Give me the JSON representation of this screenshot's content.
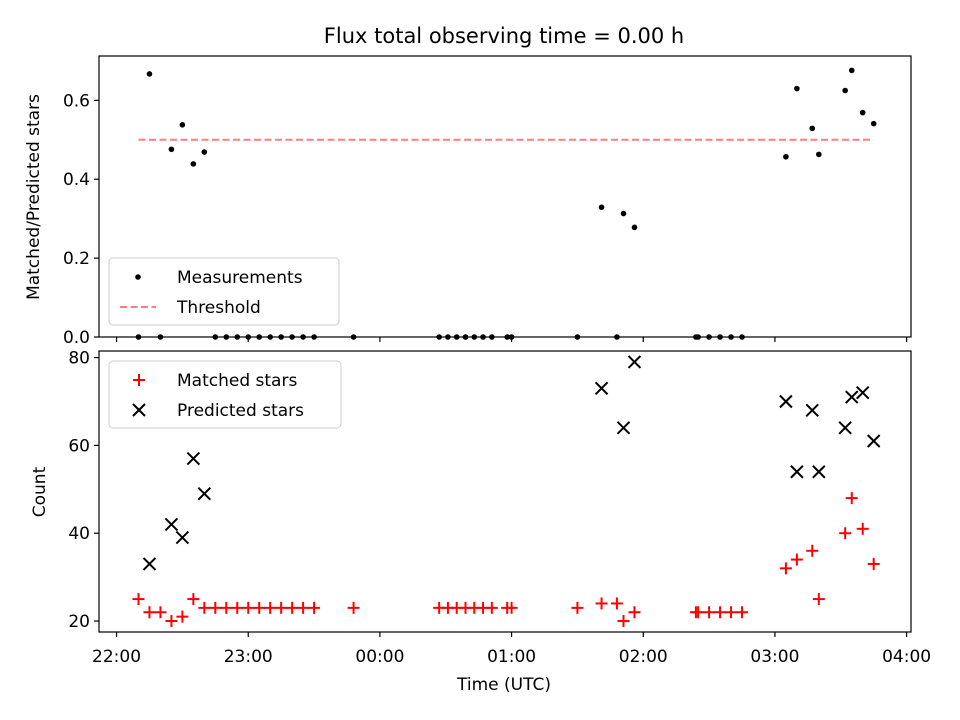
{
  "chart_data": [
    {
      "type": "scatter",
      "title": "Flux total observing time = 0.00 h",
      "xlabel": "",
      "ylabel": "Matched/Predicted stars",
      "x_range": [
        "21:52",
        "04:02"
      ],
      "ylim": [
        0,
        0.7125
      ],
      "yticks": [
        0.0,
        0.2,
        0.4,
        0.6
      ],
      "ytick_labels": [
        "0.0",
        "0.2",
        "0.4",
        "0.6"
      ],
      "legend_position": "lower-left",
      "threshold": {
        "name": "Threshold",
        "value": 0.5,
        "x_start": "22:10",
        "x_end": "03:45",
        "color": "#ff7f7f"
      },
      "series": [
        {
          "name": "Measurements",
          "color": "#000000",
          "marker": "dot",
          "points": [
            {
              "x": "22:10",
              "y": 0.0
            },
            {
              "x": "22:15",
              "y": 0.667
            },
            {
              "x": "22:20",
              "y": 0.0
            },
            {
              "x": "22:25",
              "y": 0.476
            },
            {
              "x": "22:30",
              "y": 0.538
            },
            {
              "x": "22:35",
              "y": 0.439
            },
            {
              "x": "22:40",
              "y": 0.469
            },
            {
              "x": "22:45",
              "y": 0.0
            },
            {
              "x": "22:50",
              "y": 0.0
            },
            {
              "x": "22:55",
              "y": 0.0
            },
            {
              "x": "23:00",
              "y": 0.0
            },
            {
              "x": "23:05",
              "y": 0.0
            },
            {
              "x": "23:10",
              "y": 0.0
            },
            {
              "x": "23:15",
              "y": 0.0
            },
            {
              "x": "23:20",
              "y": 0.0
            },
            {
              "x": "23:25",
              "y": 0.0
            },
            {
              "x": "23:30",
              "y": 0.0
            },
            {
              "x": "23:48",
              "y": 0.0
            },
            {
              "x": "00:27",
              "y": 0.0
            },
            {
              "x": "00:31",
              "y": 0.0
            },
            {
              "x": "00:35",
              "y": 0.0
            },
            {
              "x": "00:39",
              "y": 0.0
            },
            {
              "x": "00:43",
              "y": 0.0
            },
            {
              "x": "00:47",
              "y": 0.0
            },
            {
              "x": "00:51",
              "y": 0.0
            },
            {
              "x": "00:58",
              "y": 0.0
            },
            {
              "x": "01:00",
              "y": 0.0
            },
            {
              "x": "01:30",
              "y": 0.0
            },
            {
              "x": "01:41",
              "y": 0.329
            },
            {
              "x": "01:48",
              "y": 0.0
            },
            {
              "x": "01:51",
              "y": 0.313
            },
            {
              "x": "01:56",
              "y": 0.278
            },
            {
              "x": "02:24",
              "y": 0.0
            },
            {
              "x": "02:25",
              "y": 0.0
            },
            {
              "x": "02:30",
              "y": 0.0
            },
            {
              "x": "02:35",
              "y": 0.0
            },
            {
              "x": "02:40",
              "y": 0.0
            },
            {
              "x": "02:45",
              "y": 0.0
            },
            {
              "x": "03:05",
              "y": 0.457
            },
            {
              "x": "03:10",
              "y": 0.63
            },
            {
              "x": "03:17",
              "y": 0.529
            },
            {
              "x": "03:20",
              "y": 0.463
            },
            {
              "x": "03:32",
              "y": 0.625
            },
            {
              "x": "03:35",
              "y": 0.676
            },
            {
              "x": "03:40",
              "y": 0.569
            },
            {
              "x": "03:45",
              "y": 0.541
            }
          ]
        }
      ]
    },
    {
      "type": "scatter",
      "title": "",
      "xlabel": "Time (UTC)",
      "ylabel": "Count",
      "x_range": [
        "21:52",
        "04:02"
      ],
      "xticks": [
        "22:00",
        "23:00",
        "00:00",
        "01:00",
        "02:00",
        "03:00",
        "04:00"
      ],
      "xtick_labels": [
        "22:00",
        "23:00",
        "00:00",
        "01:00",
        "02:00",
        "03:00",
        "04:00"
      ],
      "ylim": [
        17.5,
        81.5
      ],
      "yticks": [
        20,
        40,
        60,
        80
      ],
      "ytick_labels": [
        "20",
        "40",
        "60",
        "80"
      ],
      "legend_position": "upper-left",
      "series": [
        {
          "name": "Matched stars",
          "color": "#ff0000",
          "marker": "plus",
          "points": [
            {
              "x": "22:10",
              "y": 25
            },
            {
              "x": "22:15",
              "y": 22
            },
            {
              "x": "22:20",
              "y": 22
            },
            {
              "x": "22:25",
              "y": 20
            },
            {
              "x": "22:30",
              "y": 21
            },
            {
              "x": "22:35",
              "y": 25
            },
            {
              "x": "22:40",
              "y": 23
            },
            {
              "x": "22:45",
              "y": 23
            },
            {
              "x": "22:50",
              "y": 23
            },
            {
              "x": "22:55",
              "y": 23
            },
            {
              "x": "23:00",
              "y": 23
            },
            {
              "x": "23:05",
              "y": 23
            },
            {
              "x": "23:10",
              "y": 23
            },
            {
              "x": "23:15",
              "y": 23
            },
            {
              "x": "23:20",
              "y": 23
            },
            {
              "x": "23:25",
              "y": 23
            },
            {
              "x": "23:30",
              "y": 23
            },
            {
              "x": "23:48",
              "y": 23
            },
            {
              "x": "00:27",
              "y": 23
            },
            {
              "x": "00:31",
              "y": 23
            },
            {
              "x": "00:35",
              "y": 23
            },
            {
              "x": "00:39",
              "y": 23
            },
            {
              "x": "00:43",
              "y": 23
            },
            {
              "x": "00:47",
              "y": 23
            },
            {
              "x": "00:51",
              "y": 23
            },
            {
              "x": "00:58",
              "y": 23
            },
            {
              "x": "01:00",
              "y": 23
            },
            {
              "x": "01:30",
              "y": 23
            },
            {
              "x": "01:41",
              "y": 24
            },
            {
              "x": "01:48",
              "y": 24
            },
            {
              "x": "01:51",
              "y": 20
            },
            {
              "x": "01:56",
              "y": 22
            },
            {
              "x": "02:24",
              "y": 22
            },
            {
              "x": "02:25",
              "y": 22
            },
            {
              "x": "02:30",
              "y": 22
            },
            {
              "x": "02:35",
              "y": 22
            },
            {
              "x": "02:40",
              "y": 22
            },
            {
              "x": "02:45",
              "y": 22
            },
            {
              "x": "03:05",
              "y": 32
            },
            {
              "x": "03:10",
              "y": 34
            },
            {
              "x": "03:17",
              "y": 36
            },
            {
              "x": "03:20",
              "y": 25
            },
            {
              "x": "03:32",
              "y": 40
            },
            {
              "x": "03:35",
              "y": 48
            },
            {
              "x": "03:40",
              "y": 41
            },
            {
              "x": "03:45",
              "y": 33
            }
          ]
        },
        {
          "name": "Predicted stars",
          "color": "#000000",
          "marker": "x",
          "points": [
            {
              "x": "22:15",
              "y": 33
            },
            {
              "x": "22:25",
              "y": 42
            },
            {
              "x": "22:30",
              "y": 39
            },
            {
              "x": "22:35",
              "y": 57
            },
            {
              "x": "22:40",
              "y": 49
            },
            {
              "x": "01:41",
              "y": 73
            },
            {
              "x": "01:51",
              "y": 64
            },
            {
              "x": "01:56",
              "y": 79
            },
            {
              "x": "03:05",
              "y": 70
            },
            {
              "x": "03:10",
              "y": 54
            },
            {
              "x": "03:17",
              "y": 68
            },
            {
              "x": "03:20",
              "y": 54
            },
            {
              "x": "03:32",
              "y": 64
            },
            {
              "x": "03:35",
              "y": 71
            },
            {
              "x": "03:40",
              "y": 72
            },
            {
              "x": "03:45",
              "y": 61
            }
          ]
        }
      ]
    }
  ]
}
